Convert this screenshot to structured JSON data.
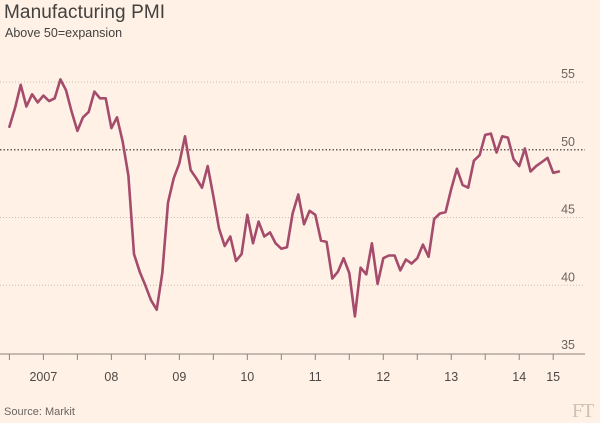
{
  "header": {
    "title": "Manufacturing PMI",
    "subtitle": "Above 50=expansion"
  },
  "footer": {
    "source": "Source: Markit",
    "logo": "FT"
  },
  "colors": {
    "background": "#fff1e5",
    "line": "#a54b6b",
    "grid": "#c9bcb0",
    "reference": "#33302e"
  },
  "chart_data": {
    "type": "line",
    "title": "Manufacturing PMI",
    "subtitle": "Above 50=expansion",
    "xlabel": "",
    "ylabel": "",
    "ylim": [
      35,
      57
    ],
    "y_ticks": [
      35,
      40,
      45,
      50,
      55
    ],
    "reference_line": 50,
    "x_range": [
      2006.95,
      2015.1
    ],
    "x_tick_labels": [
      {
        "label": "2007",
        "x": 2007.5
      },
      {
        "label": "08",
        "x": 2008.5
      },
      {
        "label": "09",
        "x": 2009.5
      },
      {
        "label": "10",
        "x": 2010.5
      },
      {
        "label": "11",
        "x": 2011.5
      },
      {
        "label": "12",
        "x": 2012.5
      },
      {
        "label": "13",
        "x": 2013.5
      },
      {
        "label": "14",
        "x": 2014.5
      },
      {
        "label": "15",
        "x": 2015.0
      }
    ],
    "x_tick_marks": [
      2007,
      2007.5,
      2008,
      2008.5,
      2009,
      2009.5,
      2010,
      2010.5,
      2011,
      2011.5,
      2012,
      2012.5,
      2013,
      2013.5,
      2014,
      2014.5,
      2015
    ],
    "series": [
      {
        "name": "Manufacturing PMI",
        "start": 2007.0,
        "step_months": 1,
        "values": [
          51.7,
          53.1,
          54.8,
          53.2,
          54.1,
          53.5,
          54.0,
          53.6,
          53.8,
          55.2,
          54.4,
          52.8,
          51.4,
          52.4,
          52.8,
          54.3,
          53.8,
          53.8,
          51.6,
          52.4,
          50.6,
          48.1,
          42.3,
          41.0,
          40.0,
          38.9,
          38.2,
          40.9,
          46.1,
          47.9,
          49.0,
          51.0,
          48.5,
          47.9,
          47.2,
          48.8,
          46.6,
          44.2,
          42.9,
          43.6,
          41.8,
          42.3,
          45.2,
          43.1,
          44.7,
          43.6,
          43.9,
          43.1,
          42.7,
          42.8,
          45.3,
          46.7,
          44.5,
          45.5,
          45.2,
          43.3,
          43.2,
          40.5,
          41.0,
          42.0,
          40.9,
          37.7,
          41.3,
          40.8,
          43.1,
          40.1,
          42.0,
          42.2,
          42.2,
          41.1,
          41.9,
          41.6,
          42.0,
          43.0,
          42.1,
          44.9,
          45.3,
          45.4,
          47.1,
          48.6,
          47.4,
          47.2,
          49.2,
          49.6,
          51.1,
          51.2,
          49.8,
          51.0,
          50.9,
          49.3,
          48.8,
          50.1,
          48.4,
          48.8,
          49.1,
          49.4,
          48.3,
          48.4
        ]
      }
    ]
  }
}
